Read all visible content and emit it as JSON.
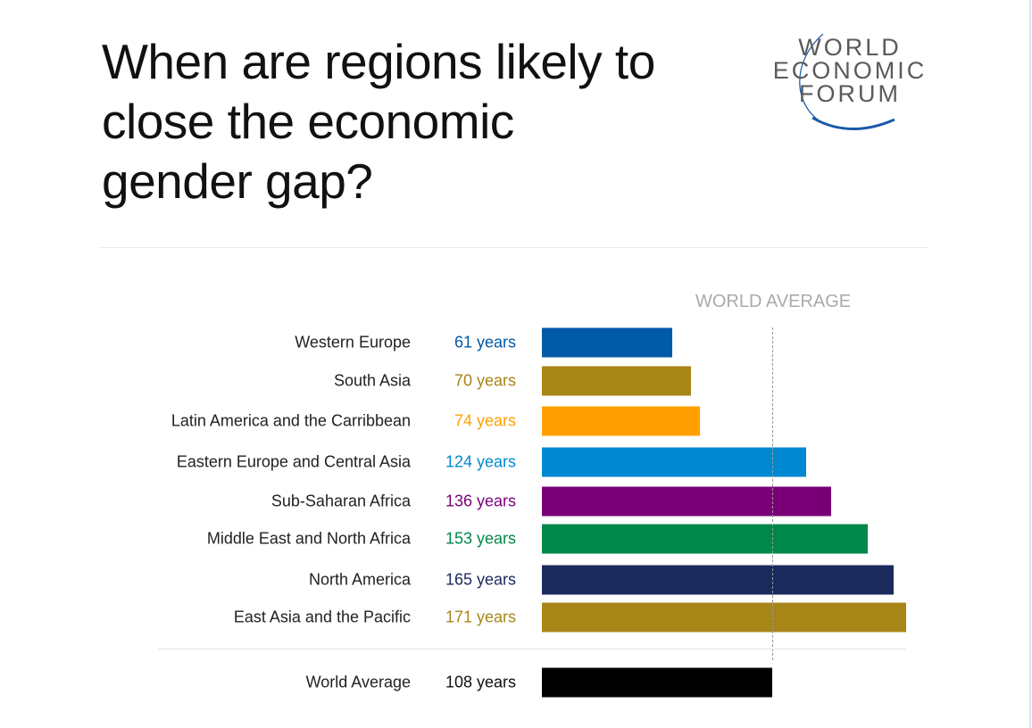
{
  "title": "When are regions likely to close the economic gender gap?",
  "logo": {
    "lines": [
      "WORLD",
      "ECONOMIC",
      "FORUM"
    ],
    "arc_color": "#1a5aa8"
  },
  "chart_data": {
    "type": "bar",
    "orientation": "horizontal",
    "reference_line": {
      "label": "WORLD AVERAGE",
      "value": 108
    },
    "categories": [
      "Western Europe",
      "South Asia",
      "Latin America and the Carribbean",
      "Eastern Europe and Central Asia",
      "Sub-Saharan Africa",
      "Middle East and North Africa",
      "North America",
      "East Asia and the Pacific",
      "World Average"
    ],
    "values": [
      61,
      70,
      74,
      124,
      136,
      153,
      165,
      171,
      108
    ],
    "value_labels": [
      "61 years",
      "70 years",
      "74 years",
      "124 years",
      "136 years",
      "153 years",
      "165 years",
      "171 years",
      "108 years"
    ],
    "colors": [
      "#005aa8",
      "#a88517",
      "#ffa000",
      "#0089d0",
      "#7a0078",
      "#00884a",
      "#1b2a5c",
      "#a88517",
      "#000000"
    ],
    "xlim": [
      0,
      171
    ]
  }
}
